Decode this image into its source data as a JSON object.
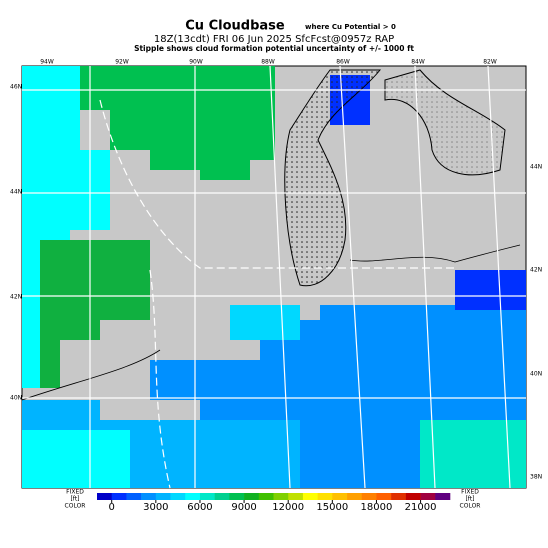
{
  "header": {
    "title": "Cu Cloudbase",
    "title_note": "where Cu Potential > 0",
    "subtitle": "18Z(13cdt) FRI 06 Jun 2025 SfcFcst@0957z RAP",
    "note": "Stipple shows cloud formation potential uncertainty of +/- 1000 ft"
  },
  "map": {
    "top_labels": [
      "94W",
      "92W",
      "90W",
      "88W",
      "86W",
      "84W",
      "82W"
    ],
    "left_labels": [
      "46N",
      "44N",
      "42N",
      "40N"
    ],
    "right_labels": [
      "44N",
      "42N",
      "40N",
      "38N"
    ]
  },
  "colorbar": {
    "left_label": [
      "FIXED",
      "[ft]",
      "COLOR"
    ],
    "right_label": [
      "FIXED",
      "[ft]",
      "COLOR"
    ],
    "lim": [
      -1000,
      23000
    ],
    "ticks": [
      0,
      3000,
      6000,
      9000,
      12000,
      15000,
      18000,
      21000
    ],
    "colors": [
      "#0000c8",
      "#0030ff",
      "#0060ff",
      "#0090ff",
      "#00b4ff",
      "#00d8ff",
      "#00ffff",
      "#00e8c8",
      "#00d090",
      "#00c050",
      "#10b020",
      "#40c000",
      "#80d000",
      "#c0e000",
      "#ffff00",
      "#ffe000",
      "#ffc000",
      "#ffa000",
      "#ff8000",
      "#ff6000",
      "#e03000",
      "#c00000",
      "#a00040",
      "#600080"
    ]
  }
}
